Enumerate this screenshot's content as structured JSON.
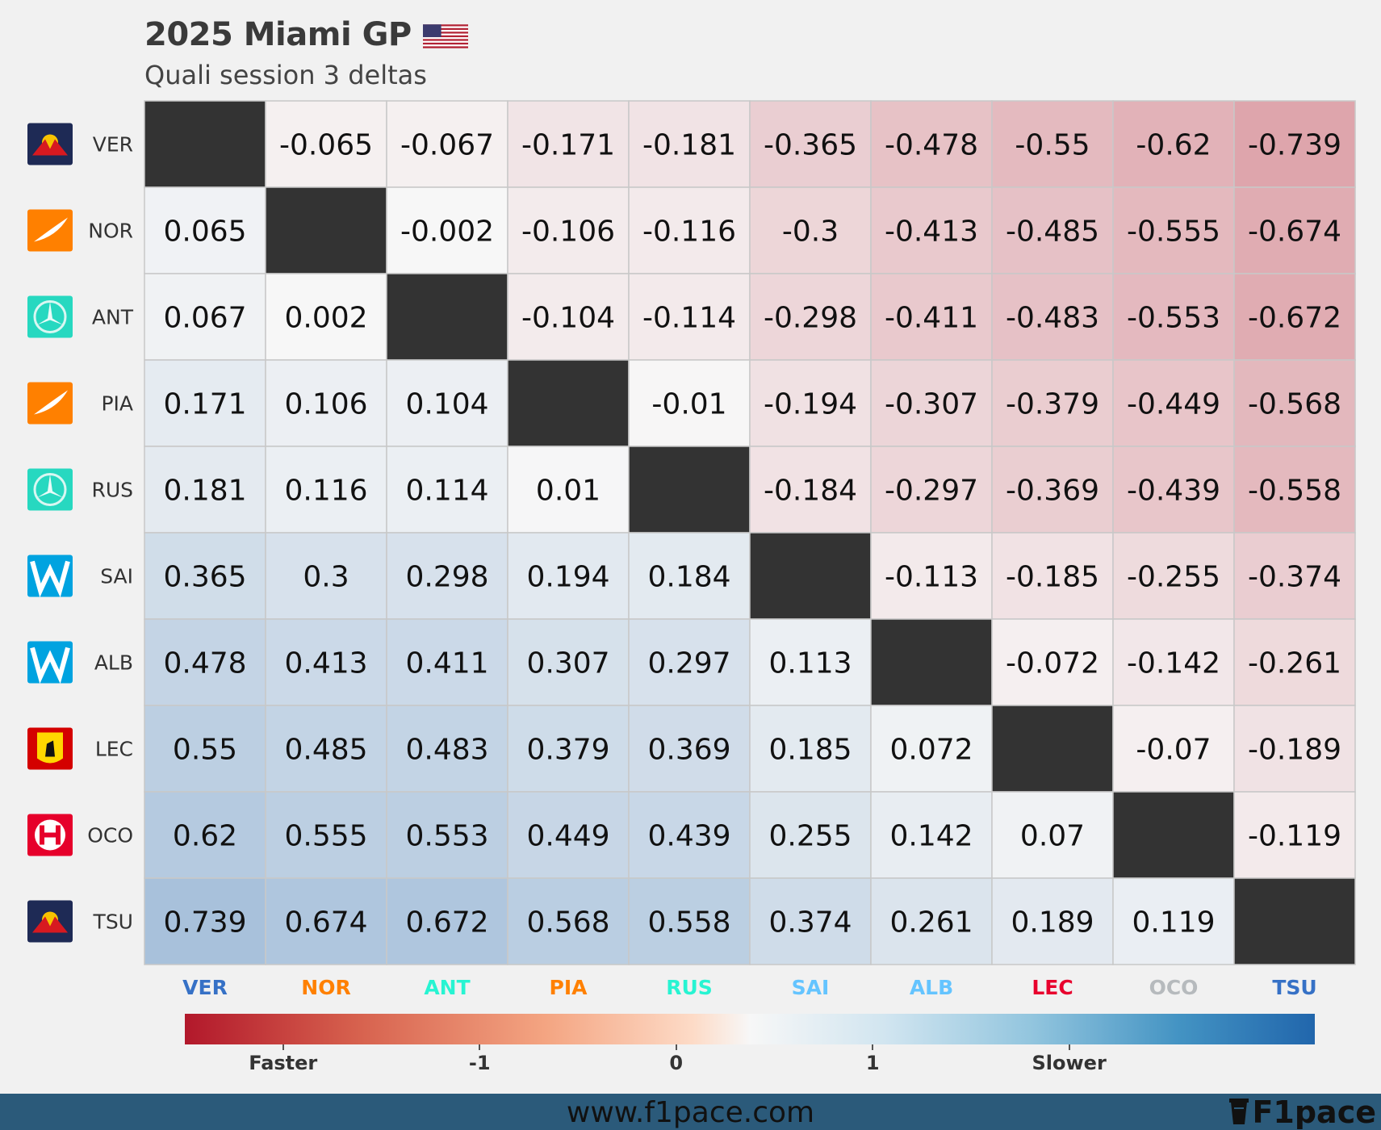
{
  "header": {
    "title": "2025 Miami GP",
    "subtitle": "Quali session 3 deltas",
    "flag_icon": "us-flag-icon"
  },
  "drivers": [
    {
      "code": "VER",
      "team": "Red Bull",
      "logo_icon": "red-bull-logo-icon",
      "color": "#3671C6"
    },
    {
      "code": "NOR",
      "team": "McLaren",
      "logo_icon": "mclaren-logo-icon",
      "color": "#FF8000"
    },
    {
      "code": "ANT",
      "team": "Mercedes",
      "logo_icon": "mercedes-logo-icon",
      "color": "#27F4D2"
    },
    {
      "code": "PIA",
      "team": "McLaren",
      "logo_icon": "mclaren-logo-icon",
      "color": "#FF8000"
    },
    {
      "code": "RUS",
      "team": "Mercedes",
      "logo_icon": "mercedes-logo-icon",
      "color": "#27F4D2"
    },
    {
      "code": "SAI",
      "team": "Williams",
      "logo_icon": "williams-logo-icon",
      "color": "#64C4FF"
    },
    {
      "code": "ALB",
      "team": "Williams",
      "logo_icon": "williams-logo-icon",
      "color": "#64C4FF"
    },
    {
      "code": "LEC",
      "team": "Ferrari",
      "logo_icon": "ferrari-logo-icon",
      "color": "#E8002D"
    },
    {
      "code": "OCO",
      "team": "Haas",
      "logo_icon": "haas-logo-icon",
      "color": "#B6BABD"
    },
    {
      "code": "TSU",
      "team": "Red Bull",
      "logo_icon": "red-bull-logo-icon",
      "color": "#3671C6"
    }
  ],
  "chart_data": {
    "type": "heatmap",
    "row_labels": [
      "VER",
      "NOR",
      "ANT",
      "PIA",
      "RUS",
      "SAI",
      "ALB",
      "LEC",
      "OCO",
      "TSU"
    ],
    "col_labels": [
      "VER",
      "NOR",
      "ANT",
      "PIA",
      "RUS",
      "SAI",
      "ALB",
      "LEC",
      "OCO",
      "TSU"
    ],
    "col_label_colors": [
      "#3671C6",
      "#FF8000",
      "#27F4D2",
      "#FF8000",
      "#27F4D2",
      "#64C4FF",
      "#64C4FF",
      "#E8002D",
      "#B6BABD",
      "#3671C6"
    ],
    "values": [
      [
        null,
        -0.065,
        -0.067,
        -0.171,
        -0.181,
        -0.365,
        -0.478,
        -0.55,
        -0.62,
        -0.739
      ],
      [
        0.065,
        null,
        -0.002,
        -0.106,
        -0.116,
        -0.3,
        -0.413,
        -0.485,
        -0.555,
        -0.674
      ],
      [
        0.067,
        0.002,
        null,
        -0.104,
        -0.114,
        -0.298,
        -0.411,
        -0.483,
        -0.553,
        -0.672
      ],
      [
        0.171,
        0.106,
        0.104,
        null,
        -0.01,
        -0.194,
        -0.307,
        -0.379,
        -0.449,
        -0.568
      ],
      [
        0.181,
        0.116,
        0.114,
        0.01,
        null,
        -0.184,
        -0.297,
        -0.369,
        -0.439,
        -0.558
      ],
      [
        0.365,
        0.3,
        0.298,
        0.194,
        0.184,
        null,
        -0.113,
        -0.185,
        -0.255,
        -0.374
      ],
      [
        0.478,
        0.413,
        0.411,
        0.307,
        0.297,
        0.113,
        null,
        -0.072,
        -0.142,
        -0.261
      ],
      [
        0.55,
        0.485,
        0.483,
        0.379,
        0.369,
        0.185,
        0.072,
        null,
        -0.07,
        -0.189
      ],
      [
        0.62,
        0.555,
        0.553,
        0.449,
        0.439,
        0.255,
        0.142,
        0.07,
        null,
        -0.119
      ],
      [
        0.739,
        0.674,
        0.672,
        0.568,
        0.558,
        0.374,
        0.261,
        0.189,
        0.119,
        null
      ]
    ],
    "colorscale": {
      "negative": "#b2182b",
      "zero": "#f7f7f7",
      "positive": "#2166ac",
      "range": [
        -2,
        2
      ]
    },
    "diagonal_color": "#333333"
  },
  "colorbar": {
    "ticks": [
      {
        "label": "Faster",
        "value": -2
      },
      {
        "label": "-1",
        "value": -1
      },
      {
        "label": "0",
        "value": 0
      },
      {
        "label": "1",
        "value": 1
      },
      {
        "label": "Slower",
        "value": 2
      }
    ]
  },
  "footer": {
    "url": "www.f1pace.com",
    "brand": "F1pace",
    "brand_icon": "cup-icon"
  }
}
